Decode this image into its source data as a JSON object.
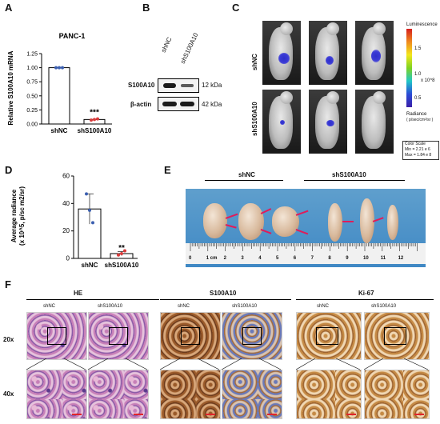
{
  "panels": {
    "a": "A",
    "b": "B",
    "c": "C",
    "d": "D",
    "e": "E",
    "f": "F"
  },
  "panelA": {
    "title": "PANC-1",
    "ylabel": "Relative S100A10 mRNA",
    "significance": "***"
  },
  "panelB": {
    "lanes": [
      "shNC",
      "shS100A10"
    ],
    "rows": [
      {
        "protein": "S100A10",
        "size": "12 kDa"
      },
      {
        "protein": "β-actin",
        "size": "42 kDa"
      }
    ]
  },
  "panelC": {
    "row_labels": [
      "shNC",
      "shS100A10"
    ],
    "colorbar_title": "Luminescence",
    "colorbar_ticks": [
      "1.5",
      "1.0",
      "0.5"
    ],
    "colorbar_unit": "x 10^8",
    "radiance_label": "Radiance",
    "radiance_unit": "( p/sec/cm²/sr )",
    "color_scale_title": "Color Scale",
    "color_scale_min": "Min = 2.21 e 6",
    "color_scale_max": "Max = 1.84 e 8"
  },
  "panelD": {
    "ylabel_line1": "Average radiance",
    "ylabel_line2": "(x 10^5, p/sc m2/sr)",
    "significance": "**"
  },
  "panelE": {
    "group_labels": [
      "shNC",
      "shS100A10"
    ],
    "ruler_labels": [
      "0",
      "1 cm",
      "2",
      "3",
      "4",
      "5",
      "6",
      "7",
      "8",
      "9",
      "10",
      "11",
      "12"
    ]
  },
  "panelF": {
    "stain_titles": [
      "HE",
      "S100A10",
      "Ki-67"
    ],
    "group_labels": [
      "shNC",
      "shS100A10"
    ],
    "magnifications": [
      "20x",
      "40x"
    ]
  },
  "chart_data": [
    {
      "type": "bar",
      "title": "PANC-1",
      "categories": [
        "shNC",
        "shS100A10"
      ],
      "values": [
        1.0,
        0.08
      ],
      "points": [
        [
          1.0,
          1.0,
          1.0
        ],
        [
          0.07,
          0.08,
          0.09
        ]
      ],
      "ylabel": "Relative S100A10 mRNA",
      "ylim": [
        0,
        1.25
      ],
      "yticks": [
        "0.00",
        "0.25",
        "0.50",
        "0.75",
        "1.00",
        "1.25"
      ],
      "annotation": "***"
    },
    {
      "type": "bar",
      "title": "",
      "categories": [
        "shNC",
        "shS100A10"
      ],
      "values": [
        36,
        3.5
      ],
      "errors": [
        11,
        1.5
      ],
      "points": [
        [
          47,
          35,
          26
        ],
        [
          2.5,
          3.5,
          5.5
        ]
      ],
      "ylabel": "Average radiance (x 10^5, p/sc m2/sr)",
      "ylim": [
        0,
        60
      ],
      "yticks": [
        "0",
        "20",
        "40",
        "60"
      ],
      "annotation": "**"
    }
  ]
}
